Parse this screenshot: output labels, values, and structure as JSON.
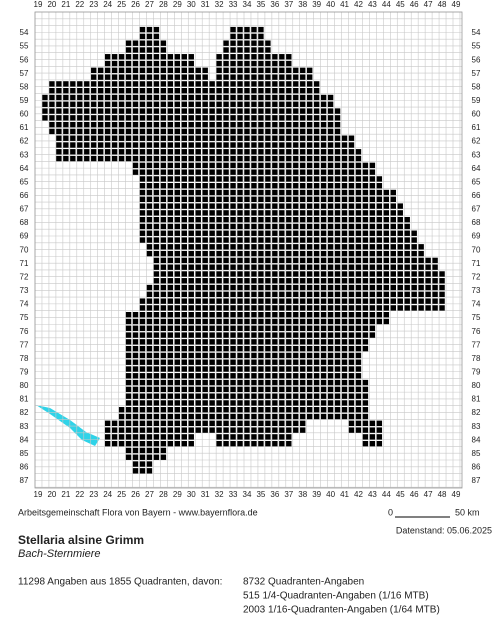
{
  "map": {
    "x_labels": [
      19,
      20,
      21,
      22,
      23,
      24,
      25,
      26,
      27,
      28,
      29,
      30,
      31,
      32,
      33,
      34,
      35,
      36,
      37,
      38,
      39,
      40,
      41,
      42,
      43,
      44,
      45,
      46,
      47,
      48,
      49
    ],
    "y_labels": [
      54,
      55,
      56,
      57,
      58,
      59,
      60,
      61,
      62,
      63,
      64,
      65,
      66,
      67,
      68,
      69,
      70,
      71,
      72,
      73,
      74,
      75,
      76,
      77,
      78,
      79,
      80,
      81,
      82,
      83,
      84,
      85,
      86,
      87
    ],
    "rows": [
      {
        "y": 54,
        "ranges": [
          [
            26.5,
            27.5
          ],
          [
            33,
            35
          ]
        ]
      },
      {
        "y": 55,
        "ranges": [
          [
            25.5,
            28
          ],
          [
            32.5,
            35.5
          ]
        ]
      },
      {
        "y": 56,
        "ranges": [
          [
            24,
            30
          ],
          [
            32,
            37
          ]
        ]
      },
      {
        "y": 57,
        "ranges": [
          [
            23,
            31
          ],
          [
            32,
            38.5
          ]
        ]
      },
      {
        "y": 58,
        "ranges": [
          [
            20,
            39
          ]
        ]
      },
      {
        "y": 59,
        "ranges": [
          [
            19.5,
            40
          ]
        ]
      },
      {
        "y": 60,
        "ranges": [
          [
            19.5,
            40.5
          ]
        ]
      },
      {
        "y": 61,
        "ranges": [
          [
            20,
            40.5
          ]
        ]
      },
      {
        "y": 62,
        "ranges": [
          [
            20.5,
            41.5
          ]
        ]
      },
      {
        "y": 63,
        "ranges": [
          [
            20.5,
            42
          ]
        ]
      },
      {
        "y": 64,
        "ranges": [
          [
            26,
            43
          ]
        ]
      },
      {
        "y": 65,
        "ranges": [
          [
            26.5,
            43.5
          ]
        ]
      },
      {
        "y": 66,
        "ranges": [
          [
            26.5,
            44.5
          ]
        ]
      },
      {
        "y": 67,
        "ranges": [
          [
            26.5,
            45
          ]
        ]
      },
      {
        "y": 68,
        "ranges": [
          [
            26.5,
            45.5
          ]
        ]
      },
      {
        "y": 69,
        "ranges": [
          [
            26.5,
            46
          ]
        ]
      },
      {
        "y": 70,
        "ranges": [
          [
            27,
            46.5
          ]
        ]
      },
      {
        "y": 71,
        "ranges": [
          [
            27.5,
            47.5
          ]
        ]
      },
      {
        "y": 72,
        "ranges": [
          [
            27.5,
            48
          ]
        ]
      },
      {
        "y": 73,
        "ranges": [
          [
            27,
            48
          ]
        ]
      },
      {
        "y": 74,
        "ranges": [
          [
            26.5,
            48
          ]
        ]
      },
      {
        "y": 75,
        "ranges": [
          [
            25.5,
            44
          ]
        ]
      },
      {
        "y": 76,
        "ranges": [
          [
            25.5,
            43
          ]
        ]
      },
      {
        "y": 77,
        "ranges": [
          [
            25.5,
            42.5
          ]
        ]
      },
      {
        "y": 78,
        "ranges": [
          [
            25.5,
            42
          ]
        ]
      },
      {
        "y": 79,
        "ranges": [
          [
            25.5,
            42
          ]
        ]
      },
      {
        "y": 80,
        "ranges": [
          [
            25.5,
            42.5
          ]
        ]
      },
      {
        "y": 81,
        "ranges": [
          [
            25.5,
            42.5
          ]
        ]
      },
      {
        "y": 82,
        "ranges": [
          [
            25,
            42.5
          ]
        ]
      },
      {
        "y": 83,
        "ranges": [
          [
            24,
            38
          ],
          [
            41.5,
            43.5
          ]
        ]
      },
      {
        "y": 84,
        "ranges": [
          [
            24,
            30
          ],
          [
            32,
            37
          ],
          [
            42.5,
            43.5
          ]
        ]
      },
      {
        "y": 85,
        "ranges": [
          [
            25.5,
            28
          ]
        ]
      },
      {
        "y": 86,
        "ranges": [
          [
            26,
            27
          ]
        ]
      }
    ]
  },
  "footer": {
    "credit": "Arbeitsgemeinschaft Flora von Bayern - www.bayernflora.de",
    "scale_start": "0",
    "scale_end": "50 km",
    "date": "Datenstand: 05.06.2025"
  },
  "species": {
    "name": "Stellaria alsine Grimm",
    "common_name": "Bach-Sternmiere"
  },
  "stats": {
    "summary": "11298 Angaben aus 1855 Quadranten, davon:",
    "lines": [
      "8732 Quadranten-Angaben",
      "515 1/4-Quadranten-Angaben (1/16 MTB)",
      "2003 1/16-Quadranten-Angaben (1/64 MTB)"
    ]
  }
}
